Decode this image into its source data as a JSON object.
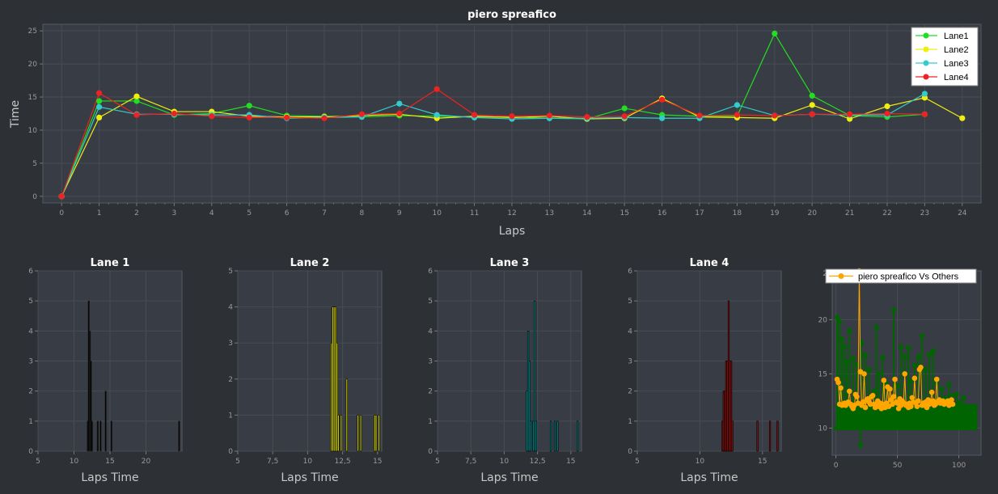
{
  "chart_data": [
    {
      "type": "line",
      "title": "piero spreafico",
      "xlabel": "Laps",
      "ylabel": "Time",
      "xlim": [
        -0.5,
        24.5
      ],
      "ylim": [
        -1,
        26
      ],
      "xticks": [
        0,
        1,
        2,
        3,
        4,
        5,
        6,
        7,
        8,
        9,
        10,
        11,
        12,
        13,
        14,
        15,
        16,
        17,
        18,
        19,
        20,
        21,
        22,
        23,
        24
      ],
      "yticks": [
        0,
        5,
        10,
        15,
        20,
        25
      ],
      "grid": true,
      "legend_position": "top-right",
      "series": [
        {
          "name": "Lane1",
          "color": "#22dd22",
          "x": [
            0,
            1,
            2,
            3,
            4,
            5,
            6,
            7,
            8,
            9,
            10,
            11,
            12,
            13,
            14,
            15,
            16,
            17,
            18,
            19,
            20,
            21,
            22,
            23
          ],
          "y": [
            0,
            14.4,
            14.4,
            12.3,
            12.5,
            13.7,
            12.2,
            12.1,
            12.0,
            12.2,
            12.1,
            12.0,
            12.0,
            11.8,
            11.7,
            13.3,
            12.3,
            12.1,
            12.1,
            24.6,
            15.2,
            12.2,
            12.0,
            12.4
          ]
        },
        {
          "name": "Lane2",
          "color": "#eeee11",
          "x": [
            0,
            1,
            2,
            3,
            4,
            5,
            6,
            7,
            8,
            9,
            10,
            11,
            12,
            13,
            14,
            15,
            16,
            17,
            18,
            19,
            20,
            21,
            22,
            23,
            24
          ],
          "y": [
            0,
            11.9,
            15.1,
            12.8,
            12.8,
            12.1,
            12.0,
            12.0,
            12.2,
            12.4,
            11.8,
            12.1,
            11.9,
            12.1,
            11.7,
            11.8,
            14.8,
            12.0,
            11.9,
            11.8,
            13.8,
            11.7,
            13.6,
            14.9,
            11.8
          ]
        },
        {
          "name": "Lane3",
          "color": "#33cccc",
          "x": [
            0,
            1,
            2,
            3,
            4,
            5,
            6,
            7,
            8,
            9,
            10,
            11,
            12,
            13,
            14,
            15,
            16,
            17,
            18,
            19,
            20,
            21,
            22,
            23
          ],
          "y": [
            0,
            13.5,
            12.4,
            12.4,
            12.3,
            12.3,
            11.8,
            11.9,
            12.0,
            14.0,
            12.3,
            11.9,
            11.7,
            11.8,
            11.8,
            11.9,
            11.8,
            11.8,
            13.8,
            12.2,
            12.4,
            12.3,
            12.3,
            15.5
          ]
        },
        {
          "name": "Lane4",
          "color": "#ee2222",
          "x": [
            0,
            1,
            2,
            3,
            4,
            5,
            6,
            7,
            8,
            9,
            10,
            11,
            12,
            13,
            14,
            15,
            16,
            17,
            18,
            19,
            20,
            21,
            22,
            23
          ],
          "y": [
            0,
            15.6,
            12.3,
            12.5,
            12.1,
            11.9,
            11.9,
            11.8,
            12.4,
            12.5,
            16.2,
            12.3,
            12.1,
            12.2,
            12.0,
            12.1,
            14.6,
            12.2,
            12.3,
            12.2,
            12.4,
            12.4,
            12.5,
            12.4
          ]
        }
      ]
    },
    {
      "type": "bar",
      "title": "Lane 1",
      "xlabel": "Laps Time",
      "ylabel": "",
      "xlim": [
        5,
        25
      ],
      "ylim": [
        0,
        6
      ],
      "xticks": [
        5,
        10,
        15,
        20
      ],
      "xtick_labels": [
        "5",
        "10",
        "15",
        "20"
      ],
      "yticks": [
        0,
        1,
        2,
        3,
        4,
        5,
        6
      ],
      "color": "#000000",
      "bin_width": 0.13,
      "bins": [
        [
          11.9,
          1
        ],
        [
          12.05,
          5
        ],
        [
          12.2,
          4
        ],
        [
          12.35,
          3
        ],
        [
          12.5,
          1
        ],
        [
          13.3,
          1
        ],
        [
          13.7,
          1
        ],
        [
          14.4,
          2
        ],
        [
          15.2,
          1
        ],
        [
          24.6,
          1
        ]
      ]
    },
    {
      "type": "bar",
      "title": "Lane 2",
      "xlabel": "Laps Time",
      "ylabel": "",
      "xlim": [
        5,
        15.3
      ],
      "ylim": [
        0,
        5
      ],
      "xticks": [
        5,
        7.5,
        10,
        12.5,
        15
      ],
      "xtick_labels": [
        "5",
        "7,5",
        "10",
        "12,5",
        "15"
      ],
      "yticks": [
        0,
        1,
        2,
        3,
        4,
        5
      ],
      "color": "#cccc00",
      "bin_width": 0.1,
      "bins": [
        [
          11.7,
          3
        ],
        [
          11.8,
          4
        ],
        [
          11.9,
          4
        ],
        [
          12.0,
          4
        ],
        [
          12.1,
          3
        ],
        [
          12.2,
          1
        ],
        [
          12.4,
          1
        ],
        [
          12.8,
          2
        ],
        [
          13.6,
          1
        ],
        [
          13.8,
          1
        ],
        [
          14.8,
          1
        ],
        [
          14.9,
          1
        ],
        [
          15.1,
          1
        ]
      ]
    },
    {
      "type": "bar",
      "title": "Lane 3",
      "xlabel": "Laps Time",
      "ylabel": "",
      "xlim": [
        5,
        15.8
      ],
      "ylim": [
        0,
        6
      ],
      "xticks": [
        5,
        7.5,
        10,
        12.5,
        15
      ],
      "xtick_labels": [
        "5",
        "7,5",
        "10",
        "12,5",
        "15"
      ],
      "yticks": [
        0,
        1,
        2,
        3,
        4,
        5,
        6
      ],
      "color": "#008888",
      "bin_width": 0.1,
      "bins": [
        [
          11.7,
          2
        ],
        [
          11.8,
          4
        ],
        [
          11.9,
          3
        ],
        [
          12.0,
          1
        ],
        [
          12.2,
          1
        ],
        [
          12.3,
          5
        ],
        [
          12.4,
          1
        ],
        [
          13.5,
          1
        ],
        [
          13.8,
          1
        ],
        [
          14.0,
          1
        ],
        [
          15.5,
          1
        ]
      ]
    },
    {
      "type": "bar",
      "title": "Lane 4",
      "xlabel": "Laps Time",
      "ylabel": "",
      "xlim": [
        5,
        16.5
      ],
      "ylim": [
        0,
        6
      ],
      "xticks": [
        5,
        10,
        15
      ],
      "xtick_labels": [
        "5",
        "10",
        "15"
      ],
      "yticks": [
        0,
        1,
        2,
        3,
        4,
        5,
        6
      ],
      "color": "#881111",
      "bin_width": 0.1,
      "bins": [
        [
          11.8,
          1
        ],
        [
          11.9,
          2
        ],
        [
          12.0,
          2
        ],
        [
          12.1,
          3
        ],
        [
          12.2,
          3
        ],
        [
          12.3,
          5
        ],
        [
          12.4,
          3
        ],
        [
          12.5,
          3
        ],
        [
          12.6,
          1
        ],
        [
          14.6,
          1
        ],
        [
          15.6,
          1
        ],
        [
          16.2,
          1
        ]
      ]
    },
    {
      "type": "scatter",
      "title": "",
      "legend": "piero spreafico Vs Others",
      "xlim": [
        -3,
        118
      ],
      "ylim": [
        7.5,
        24.5
      ],
      "xticks": [
        0,
        50,
        100
      ],
      "yticks": [
        10,
        15,
        20
      ],
      "ytop_label": "2",
      "others_color": "#006400",
      "main_color": "#ffa500",
      "others_band": [
        9.8,
        12.2
      ],
      "others_spikes": [
        [
          1,
          20.2
        ],
        [
          3,
          19.8
        ],
        [
          5,
          18.2
        ],
        [
          7,
          17.5
        ],
        [
          9,
          16.1
        ],
        [
          11,
          19.0
        ],
        [
          14,
          16.4
        ],
        [
          17,
          15.9
        ],
        [
          21,
          17.9
        ],
        [
          24,
          16.7
        ],
        [
          27,
          15.4
        ],
        [
          31,
          13.4
        ],
        [
          33,
          19.3
        ],
        [
          35,
          15.0
        ],
        [
          38,
          16.5
        ],
        [
          41,
          14.1
        ],
        [
          44,
          13.6
        ],
        [
          47,
          20.9
        ],
        [
          50,
          13.9
        ],
        [
          53,
          17.5
        ],
        [
          56,
          16.6
        ],
        [
          59,
          17.4
        ],
        [
          61,
          14.3
        ],
        [
          64,
          15.8
        ],
        [
          67,
          16.6
        ],
        [
          70,
          18.5
        ],
        [
          73,
          15.4
        ],
        [
          76,
          16.8
        ],
        [
          79,
          17.1
        ],
        [
          82,
          14.1
        ],
        [
          86,
          13.6
        ],
        [
          89,
          12.8
        ],
        [
          92,
          14.0
        ],
        [
          95,
          13.0
        ],
        [
          98,
          13.1
        ],
        [
          101,
          12.4
        ],
        [
          104,
          12.8
        ],
        [
          107,
          11.8
        ],
        [
          109,
          11.3
        ],
        [
          112,
          10.9
        ],
        [
          20,
          8.4
        ]
      ],
      "main_points": [
        [
          1,
          14.5
        ],
        [
          2,
          14.2
        ],
        [
          3,
          12.2
        ],
        [
          4,
          13.7
        ],
        [
          5,
          12.1
        ],
        [
          6,
          12.2
        ],
        [
          7,
          12.3
        ],
        [
          8,
          12.1
        ],
        [
          9,
          12.3
        ],
        [
          10,
          12.4
        ],
        [
          11,
          13.4
        ],
        [
          12,
          12.2
        ],
        [
          13,
          12.0
        ],
        [
          14,
          11.8
        ],
        [
          15,
          12.1
        ],
        [
          16,
          13.1
        ],
        [
          17,
          12.9
        ],
        [
          18,
          12.3
        ],
        [
          19,
          25.0
        ],
        [
          20,
          15.2
        ],
        [
          21,
          12.1
        ],
        [
          22,
          12.4
        ],
        [
          23,
          15.0
        ],
        [
          24,
          11.9
        ],
        [
          25,
          12.6
        ],
        [
          26,
          12.7
        ],
        [
          27,
          12.4
        ],
        [
          28,
          12.2
        ],
        [
          29,
          12.9
        ],
        [
          30,
          13.0
        ],
        [
          31,
          12.2
        ],
        [
          32,
          11.9
        ],
        [
          33,
          12.1
        ],
        [
          34,
          12.5
        ],
        [
          35,
          12.0
        ],
        [
          36,
          12.3
        ],
        [
          37,
          11.8
        ],
        [
          38,
          12.2
        ],
        [
          39,
          14.4
        ],
        [
          40,
          11.9
        ],
        [
          41,
          12.3
        ],
        [
          42,
          13.8
        ],
        [
          43,
          12.0
        ],
        [
          44,
          13.6
        ],
        [
          45,
          12.6
        ],
        [
          46,
          12.2
        ],
        [
          47,
          12.9
        ],
        [
          48,
          14.5
        ],
        [
          49,
          12.4
        ],
        [
          50,
          12.3
        ],
        [
          51,
          11.8
        ],
        [
          52,
          12.7
        ],
        [
          53,
          12.1
        ],
        [
          54,
          12.5
        ],
        [
          55,
          12.3
        ],
        [
          56,
          15.0
        ],
        [
          57,
          12.1
        ],
        [
          58,
          12.2
        ],
        [
          59,
          11.9
        ],
        [
          60,
          12.3
        ],
        [
          61,
          12.0
        ],
        [
          62,
          12.8
        ],
        [
          63,
          12.4
        ],
        [
          64,
          14.6
        ],
        [
          65,
          12.3
        ],
        [
          66,
          12.0
        ],
        [
          67,
          12.5
        ],
        [
          68,
          15.4
        ],
        [
          69,
          15.6
        ],
        [
          70,
          12.1
        ],
        [
          71,
          12.3
        ],
        [
          72,
          12.1
        ],
        [
          73,
          12.4
        ],
        [
          74,
          11.9
        ],
        [
          75,
          12.6
        ],
        [
          76,
          12.2
        ],
        [
          77,
          12.4
        ],
        [
          78,
          13.3
        ],
        [
          79,
          12.5
        ],
        [
          80,
          12.1
        ],
        [
          81,
          12.2
        ],
        [
          82,
          14.5
        ],
        [
          83,
          12.4
        ],
        [
          84,
          12.6
        ],
        [
          85,
          12.3
        ],
        [
          86,
          12.4
        ],
        [
          87,
          12.5
        ],
        [
          88,
          12.2
        ],
        [
          89,
          12.3
        ],
        [
          90,
          12.4
        ],
        [
          91,
          12.5
        ],
        [
          92,
          12.1
        ],
        [
          93,
          12.4
        ],
        [
          94,
          12.6
        ],
        [
          95,
          12.2
        ]
      ]
    }
  ]
}
